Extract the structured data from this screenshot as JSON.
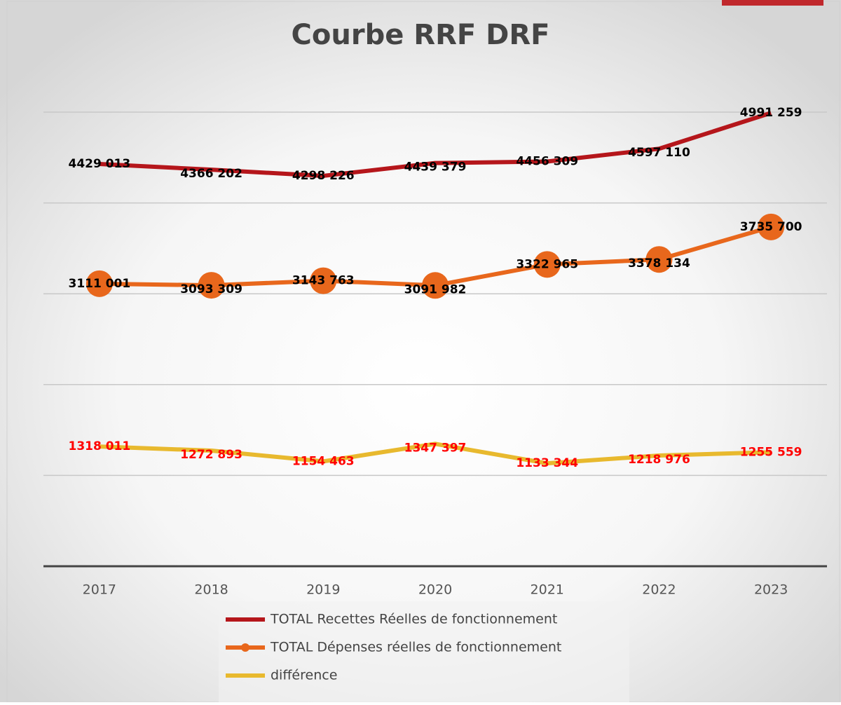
{
  "chart_data": {
    "type": "line",
    "title": "Courbe RRF DRF",
    "categories": [
      "2017",
      "2018",
      "2019",
      "2020",
      "2021",
      "2022",
      "2023"
    ],
    "series": [
      {
        "name": "TOTAL Recettes Réelles de fonctionnement",
        "color": "#b5161b",
        "marker": null,
        "values": [
          4429013,
          4366202,
          4298226,
          4439379,
          4456309,
          4597110,
          4991259
        ],
        "value_labels": [
          "4429 013",
          "4366 202",
          "4298 226",
          "4439 379",
          "4456 309",
          "4597 110",
          "4991 259"
        ],
        "label_color": "#000000"
      },
      {
        "name": "TOTAL Dépenses réelles de fonctionnement",
        "color": "#e8671c",
        "marker": "circle",
        "values": [
          3111001,
          3093309,
          3143763,
          3091982,
          3322965,
          3378134,
          3735700
        ],
        "value_labels": [
          "3111 001",
          "3093 309",
          "3143 763",
          "3091 982",
          "3322 965",
          "3378 134",
          "3735 700"
        ],
        "label_color": "#000000"
      },
      {
        "name": "différence",
        "color": "#e8b92e",
        "marker": null,
        "values": [
          1318011,
          1272893,
          1154463,
          1347397,
          1133344,
          1218976,
          1255559
        ],
        "value_labels": [
          "1318 011",
          "1272 893",
          "1154 463",
          "1347 397",
          "1133 344",
          "1218 976",
          "1255 559"
        ],
        "label_color": "#ff0000"
      }
    ],
    "ylim": [
      0,
      5000000
    ],
    "yticks": [
      0,
      1000000,
      2000000,
      3000000,
      4000000,
      5000000
    ],
    "grid": true,
    "legend": "bottom"
  }
}
